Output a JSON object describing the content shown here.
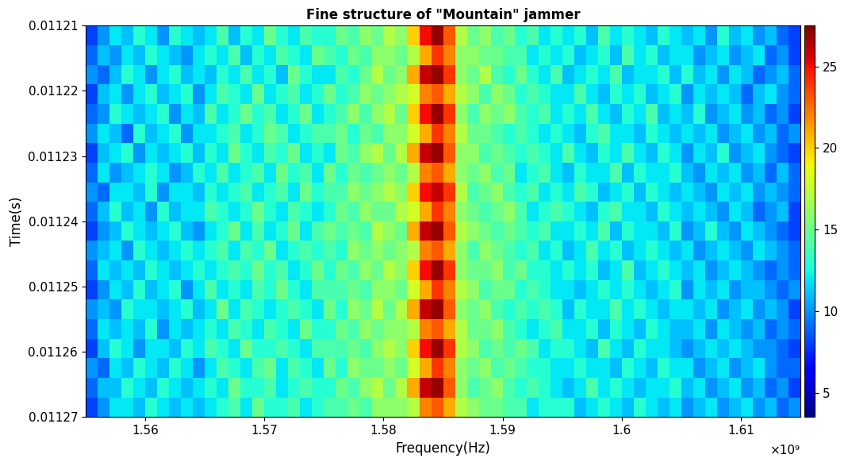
{
  "chart_data": {
    "type": "heatmap",
    "title": "Fine structure of \"Mountain\" jammer",
    "x_label": "Frequency(Hz)",
    "y_label": "Time(s)",
    "x_scale_label": "×10⁹",
    "xlim": [
      1555000000,
      1615000000
    ],
    "xticks": [
      {
        "value": 1560000000,
        "label": "1.56"
      },
      {
        "value": 1570000000,
        "label": "1.57"
      },
      {
        "value": 1580000000,
        "label": "1.58"
      },
      {
        "value": 1590000000,
        "label": "1.59"
      },
      {
        "value": 1600000000,
        "label": "1.6"
      },
      {
        "value": 1610000000,
        "label": "1.61"
      }
    ],
    "ylim": [
      0.01127,
      0.01121
    ],
    "yticks": [
      0.01121,
      0.01122,
      0.01123,
      0.01124,
      0.01125,
      0.01126,
      0.01127
    ],
    "colorbar": {
      "range": [
        3.5,
        27.5
      ],
      "ticks": [
        5,
        10,
        15,
        20,
        25
      ]
    },
    "cells": [
      [
        8,
        10,
        12,
        11,
        13,
        12,
        10,
        13,
        12,
        11,
        12,
        14,
        11,
        13,
        12,
        15,
        13,
        12,
        14,
        13,
        13,
        15,
        14,
        16,
        15,
        17,
        16,
        20,
        25,
        27,
        23,
        17,
        15,
        16,
        14,
        15,
        13,
        14,
        12,
        13,
        12,
        13,
        11,
        14,
        12,
        13,
        12,
        11,
        13,
        12,
        11,
        12,
        10,
        13,
        11,
        12,
        10,
        11,
        9,
        8
      ],
      [
        9,
        11,
        10,
        12,
        11,
        13,
        12,
        11,
        10,
        12,
        13,
        12,
        14,
        11,
        13,
        12,
        14,
        13,
        12,
        15,
        14,
        13,
        15,
        14,
        16,
        16,
        15,
        17,
        21,
        24,
        22,
        16,
        16,
        15,
        15,
        14,
        14,
        12,
        13,
        12,
        13,
        11,
        12,
        13,
        11,
        14,
        12,
        13,
        11,
        12,
        12,
        10,
        11,
        12,
        10,
        11,
        12,
        9,
        10,
        8
      ],
      [
        10,
        9,
        11,
        13,
        12,
        10,
        12,
        13,
        11,
        12,
        11,
        13,
        12,
        14,
        12,
        13,
        11,
        15,
        13,
        12,
        12,
        14,
        13,
        15,
        17,
        15,
        16,
        21,
        26,
        27,
        24,
        16,
        15,
        17,
        14,
        13,
        15,
        13,
        12,
        14,
        11,
        12,
        13,
        12,
        14,
        11,
        12,
        12,
        13,
        11,
        13,
        11,
        12,
        10,
        12,
        11,
        9,
        10,
        11,
        9
      ],
      [
        8,
        11,
        12,
        10,
        12,
        13,
        11,
        12,
        13,
        10,
        12,
        14,
        13,
        12,
        15,
        12,
        13,
        14,
        12,
        13,
        15,
        13,
        14,
        16,
        15,
        16,
        17,
        18,
        22,
        23,
        21,
        17,
        16,
        14,
        16,
        15,
        13,
        14,
        13,
        12,
        12,
        14,
        12,
        11,
        13,
        12,
        13,
        11,
        12,
        13,
        10,
        12,
        11,
        12,
        11,
        9,
        11,
        12,
        10,
        9
      ],
      [
        9,
        10,
        13,
        12,
        11,
        12,
        13,
        10,
        12,
        11,
        14,
        12,
        13,
        15,
        13,
        14,
        12,
        13,
        15,
        12,
        13,
        14,
        16,
        14,
        16,
        17,
        15,
        20,
        25,
        27,
        24,
        16,
        14,
        16,
        15,
        16,
        14,
        13,
        14,
        12,
        13,
        12,
        14,
        12,
        11,
        13,
        12,
        14,
        11,
        12,
        11,
        13,
        10,
        11,
        12,
        10,
        11,
        9,
        10,
        8
      ],
      [
        10,
        12,
        11,
        9,
        13,
        11,
        12,
        13,
        10,
        12,
        12,
        13,
        14,
        12,
        13,
        15,
        14,
        12,
        13,
        14,
        14,
        15,
        13,
        15,
        14,
        16,
        16,
        18,
        21,
        24,
        22,
        17,
        15,
        15,
        14,
        13,
        14,
        13,
        12,
        13,
        12,
        11,
        13,
        14,
        12,
        12,
        11,
        13,
        12,
        11,
        12,
        11,
        12,
        10,
        11,
        12,
        10,
        11,
        9,
        10
      ],
      [
        8,
        11,
        12,
        13,
        10,
        12,
        11,
        12,
        13,
        11,
        13,
        12,
        15,
        13,
        12,
        14,
        13,
        15,
        12,
        13,
        12,
        15,
        14,
        16,
        17,
        15,
        17,
        21,
        26,
        27,
        23,
        16,
        16,
        14,
        15,
        14,
        13,
        14,
        13,
        12,
        14,
        12,
        11,
        13,
        12,
        14,
        12,
        11,
        13,
        12,
        10,
        12,
        11,
        13,
        10,
        11,
        12,
        10,
        9,
        8
      ],
      [
        9,
        12,
        10,
        11,
        12,
        13,
        12,
        10,
        11,
        13,
        12,
        14,
        12,
        13,
        14,
        12,
        15,
        13,
        14,
        12,
        15,
        13,
        15,
        14,
        15,
        16,
        15,
        17,
        22,
        23,
        21,
        16,
        15,
        16,
        14,
        15,
        12,
        13,
        14,
        12,
        11,
        13,
        12,
        12,
        14,
        11,
        13,
        12,
        12,
        13,
        11,
        10,
        12,
        11,
        12,
        10,
        11,
        9,
        11,
        9
      ],
      [
        10,
        9,
        12,
        12,
        11,
        13,
        10,
        12,
        12,
        11,
        13,
        12,
        13,
        14,
        12,
        13,
        14,
        12,
        15,
        13,
        14,
        14,
        16,
        15,
        16,
        17,
        16,
        20,
        25,
        26,
        24,
        17,
        14,
        15,
        16,
        14,
        13,
        14,
        12,
        13,
        12,
        14,
        13,
        11,
        12,
        13,
        11,
        13,
        12,
        11,
        12,
        11,
        10,
        12,
        11,
        12,
        10,
        11,
        10,
        9
      ],
      [
        9,
        11,
        13,
        11,
        12,
        10,
        13,
        11,
        12,
        12,
        14,
        13,
        12,
        13,
        15,
        13,
        12,
        14,
        13,
        12,
        13,
        15,
        14,
        16,
        15,
        15,
        17,
        18,
        21,
        24,
        22,
        16,
        15,
        14,
        15,
        16,
        14,
        12,
        13,
        14,
        13,
        12,
        11,
        13,
        14,
        12,
        12,
        11,
        13,
        12,
        11,
        12,
        11,
        10,
        12,
        11,
        9,
        10,
        11,
        8
      ],
      [
        8,
        10,
        11,
        13,
        12,
        11,
        12,
        13,
        11,
        10,
        12,
        13,
        15,
        12,
        14,
        12,
        13,
        15,
        12,
        14,
        15,
        14,
        15,
        14,
        17,
        16,
        15,
        21,
        26,
        27,
        23,
        17,
        16,
        15,
        14,
        15,
        14,
        13,
        14,
        12,
        12,
        13,
        12,
        14,
        11,
        13,
        12,
        12,
        11,
        13,
        10,
        11,
        13,
        11,
        10,
        12,
        11,
        10,
        9,
        8
      ],
      [
        10,
        11,
        12,
        10,
        13,
        12,
        11,
        12,
        13,
        12,
        13,
        14,
        12,
        14,
        13,
        15,
        12,
        13,
        14,
        13,
        14,
        13,
        16,
        15,
        16,
        15,
        16,
        17,
        22,
        23,
        21,
        16,
        14,
        16,
        15,
        14,
        13,
        14,
        12,
        13,
        11,
        12,
        14,
        12,
        13,
        11,
        12,
        13,
        12,
        11,
        12,
        10,
        11,
        12,
        11,
        10,
        12,
        11,
        10,
        9
      ],
      [
        9,
        12,
        11,
        12,
        11,
        13,
        12,
        11,
        12,
        13,
        12,
        13,
        14,
        13,
        15,
        13,
        14,
        12,
        13,
        15,
        13,
        15,
        14,
        16,
        15,
        17,
        16,
        20,
        25,
        27,
        24,
        16,
        15,
        15,
        16,
        14,
        15,
        13,
        13,
        12,
        13,
        12,
        13,
        11,
        12,
        14,
        11,
        12,
        13,
        12,
        11,
        12,
        10,
        11,
        12,
        11,
        10,
        9,
        10,
        9
      ],
      [
        8,
        10,
        12,
        11,
        13,
        11,
        12,
        13,
        10,
        12,
        14,
        12,
        13,
        12,
        14,
        13,
        15,
        13,
        12,
        14,
        14,
        14,
        15,
        14,
        16,
        16,
        15,
        18,
        21,
        24,
        22,
        17,
        16,
        14,
        15,
        15,
        13,
        14,
        13,
        12,
        12,
        11,
        12,
        13,
        12,
        13,
        12,
        11,
        12,
        13,
        10,
        12,
        11,
        12,
        10,
        11,
        11,
        10,
        9,
        10
      ],
      [
        10,
        11,
        10,
        13,
        12,
        12,
        11,
        12,
        13,
        11,
        12,
        15,
        12,
        14,
        13,
        12,
        13,
        14,
        13,
        12,
        15,
        13,
        16,
        15,
        17,
        15,
        17,
        21,
        26,
        27,
        23,
        16,
        15,
        16,
        14,
        13,
        14,
        13,
        14,
        13,
        11,
        13,
        12,
        12,
        14,
        12,
        13,
        12,
        11,
        12,
        12,
        11,
        12,
        10,
        11,
        12,
        10,
        11,
        10,
        8
      ],
      [
        9,
        12,
        11,
        12,
        11,
        13,
        10,
        12,
        11,
        12,
        13,
        12,
        14,
        13,
        12,
        14,
        13,
        12,
        15,
        13,
        13,
        15,
        14,
        16,
        15,
        16,
        16,
        17,
        22,
        23,
        21,
        17,
        15,
        15,
        16,
        14,
        13,
        12,
        13,
        14,
        12,
        12,
        13,
        11,
        13,
        12,
        11,
        13,
        12,
        11,
        11,
        12,
        10,
        12,
        11,
        10,
        11,
        9,
        10,
        9
      ],
      [
        8,
        11,
        13,
        12,
        10,
        12,
        12,
        11,
        13,
        12,
        14,
        13,
        12,
        15,
        13,
        13,
        14,
        13,
        12,
        14,
        14,
        14,
        15,
        14,
        16,
        17,
        16,
        20,
        25,
        27,
        24,
        17,
        16,
        14,
        15,
        14,
        15,
        14,
        12,
        13,
        13,
        12,
        11,
        14,
        12,
        11,
        13,
        12,
        12,
        11,
        10,
        11,
        12,
        11,
        12,
        11,
        10,
        10,
        9,
        8
      ],
      [
        10,
        9,
        12,
        11,
        13,
        12,
        11,
        13,
        12,
        10,
        12,
        14,
        13,
        12,
        14,
        15,
        12,
        14,
        13,
        12,
        15,
        13,
        16,
        15,
        15,
        16,
        15,
        18,
        21,
        24,
        22,
        16,
        15,
        16,
        14,
        15,
        14,
        13,
        13,
        12,
        12,
        13,
        12,
        12,
        11,
        13,
        12,
        11,
        13,
        12,
        12,
        10,
        11,
        12,
        10,
        11,
        12,
        10,
        9,
        9
      ],
      [
        9,
        11,
        11,
        13,
        12,
        11,
        13,
        12,
        11,
        12,
        13,
        12,
        15,
        13,
        13,
        14,
        12,
        13,
        14,
        13,
        13,
        15,
        14,
        16,
        17,
        15,
        17,
        21,
        26,
        27,
        23,
        16,
        14,
        15,
        16,
        14,
        13,
        14,
        13,
        12,
        11,
        12,
        14,
        12,
        13,
        12,
        11,
        12,
        12,
        13,
        11,
        12,
        10,
        11,
        12,
        10,
        11,
        9,
        10,
        8
      ],
      [
        8,
        10,
        12,
        12,
        11,
        13,
        12,
        11,
        12,
        11,
        12,
        13,
        14,
        12,
        15,
        13,
        13,
        14,
        12,
        13,
        14,
        14,
        15,
        14,
        16,
        16,
        16,
        17,
        22,
        23,
        21,
        17,
        16,
        15,
        15,
        14,
        14,
        12,
        13,
        13,
        13,
        11,
        12,
        13,
        12,
        11,
        13,
        12,
        11,
        12,
        10,
        11,
        12,
        10,
        11,
        12,
        10,
        11,
        9,
        10
      ]
    ]
  }
}
